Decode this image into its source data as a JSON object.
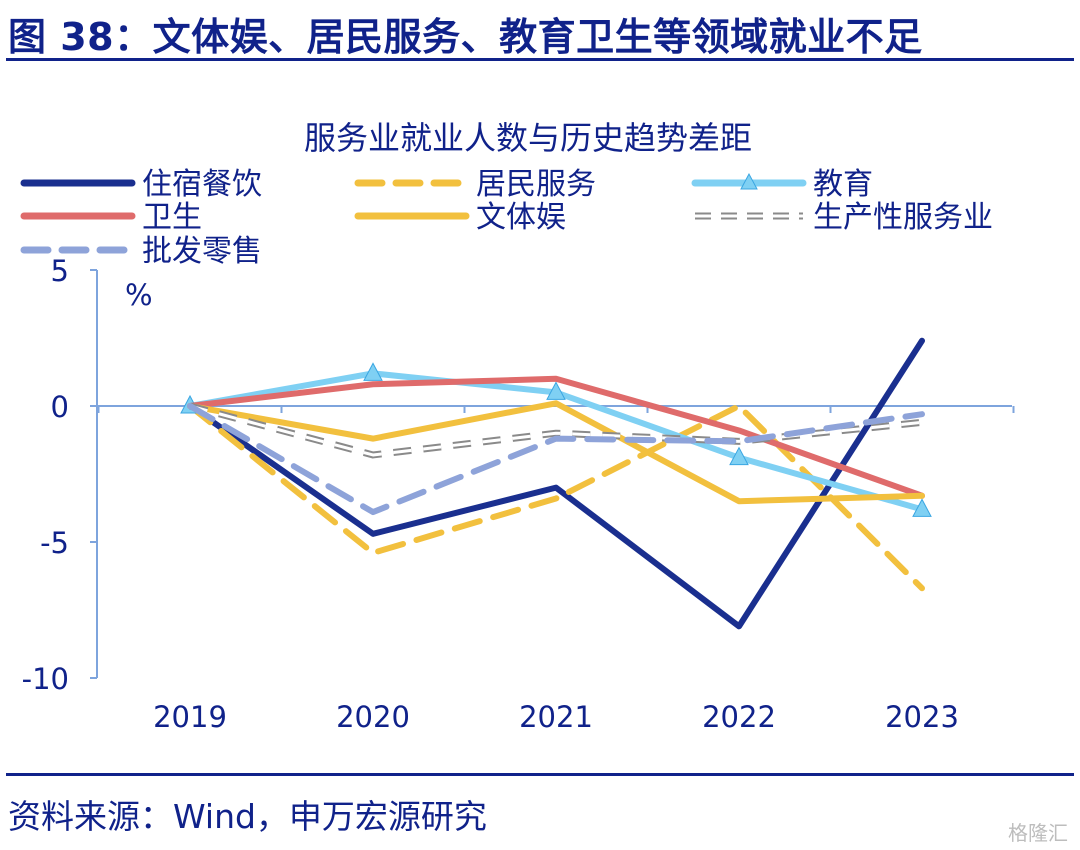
{
  "figure_title": "图 38：文体娱、居民服务、教育卫生等领域就业不足",
  "source_note": "资料来源：Wind，申万宏源研究",
  "watermark": "格隆汇",
  "colors": {
    "brand": "#10228a",
    "axis": "#7ea4dd",
    "text": "#10228a"
  },
  "chart_data": {
    "type": "line",
    "title": "服务业就业人数与历史趋势差距",
    "ylabel": "%",
    "xlabel": "",
    "categories": [
      "2019",
      "2020",
      "2021",
      "2022",
      "2023"
    ],
    "ylim": [
      -10,
      5
    ],
    "yticks": [
      5,
      0,
      -5,
      -10
    ],
    "ytick_labels": [
      "5",
      "0",
      "-5",
      "-10"
    ],
    "grid": false,
    "legend_position": "top",
    "series": [
      {
        "name": "住宿餐饮",
        "color": "#1a2f8f",
        "dash": "solid",
        "marker": "none",
        "values": [
          0,
          -4.7,
          -3.0,
          -8.1,
          2.4
        ]
      },
      {
        "name": "居民服务",
        "color": "#f2c03e",
        "dash": "dashed",
        "marker": "none",
        "values": [
          0,
          -5.4,
          -3.4,
          0,
          -6.7
        ]
      },
      {
        "name": "教育",
        "color": "#7fd0f3",
        "dash": "solid",
        "marker": "triangle",
        "values": [
          0,
          1.2,
          0.5,
          -1.9,
          -3.8
        ]
      },
      {
        "name": "卫生",
        "color": "#df6b6b",
        "dash": "solid",
        "marker": "none",
        "values": [
          0,
          0.8,
          1.0,
          -0.9,
          -3.3
        ]
      },
      {
        "name": "文体娱",
        "color": "#f2c03e",
        "dash": "solid",
        "marker": "none",
        "values": [
          0,
          -1.2,
          0.1,
          -3.5,
          -3.3
        ]
      },
      {
        "name": "生产性服务业",
        "color": "#8a8a8a",
        "dash": "dashed-outline",
        "marker": "none",
        "values": [
          0,
          -1.8,
          -1.0,
          -1.3,
          -0.6
        ]
      },
      {
        "name": "批发零售",
        "color": "#8ea3d9",
        "dash": "dashed",
        "marker": "none",
        "values": [
          0,
          -3.9,
          -1.2,
          -1.3,
          -0.3
        ]
      }
    ]
  }
}
